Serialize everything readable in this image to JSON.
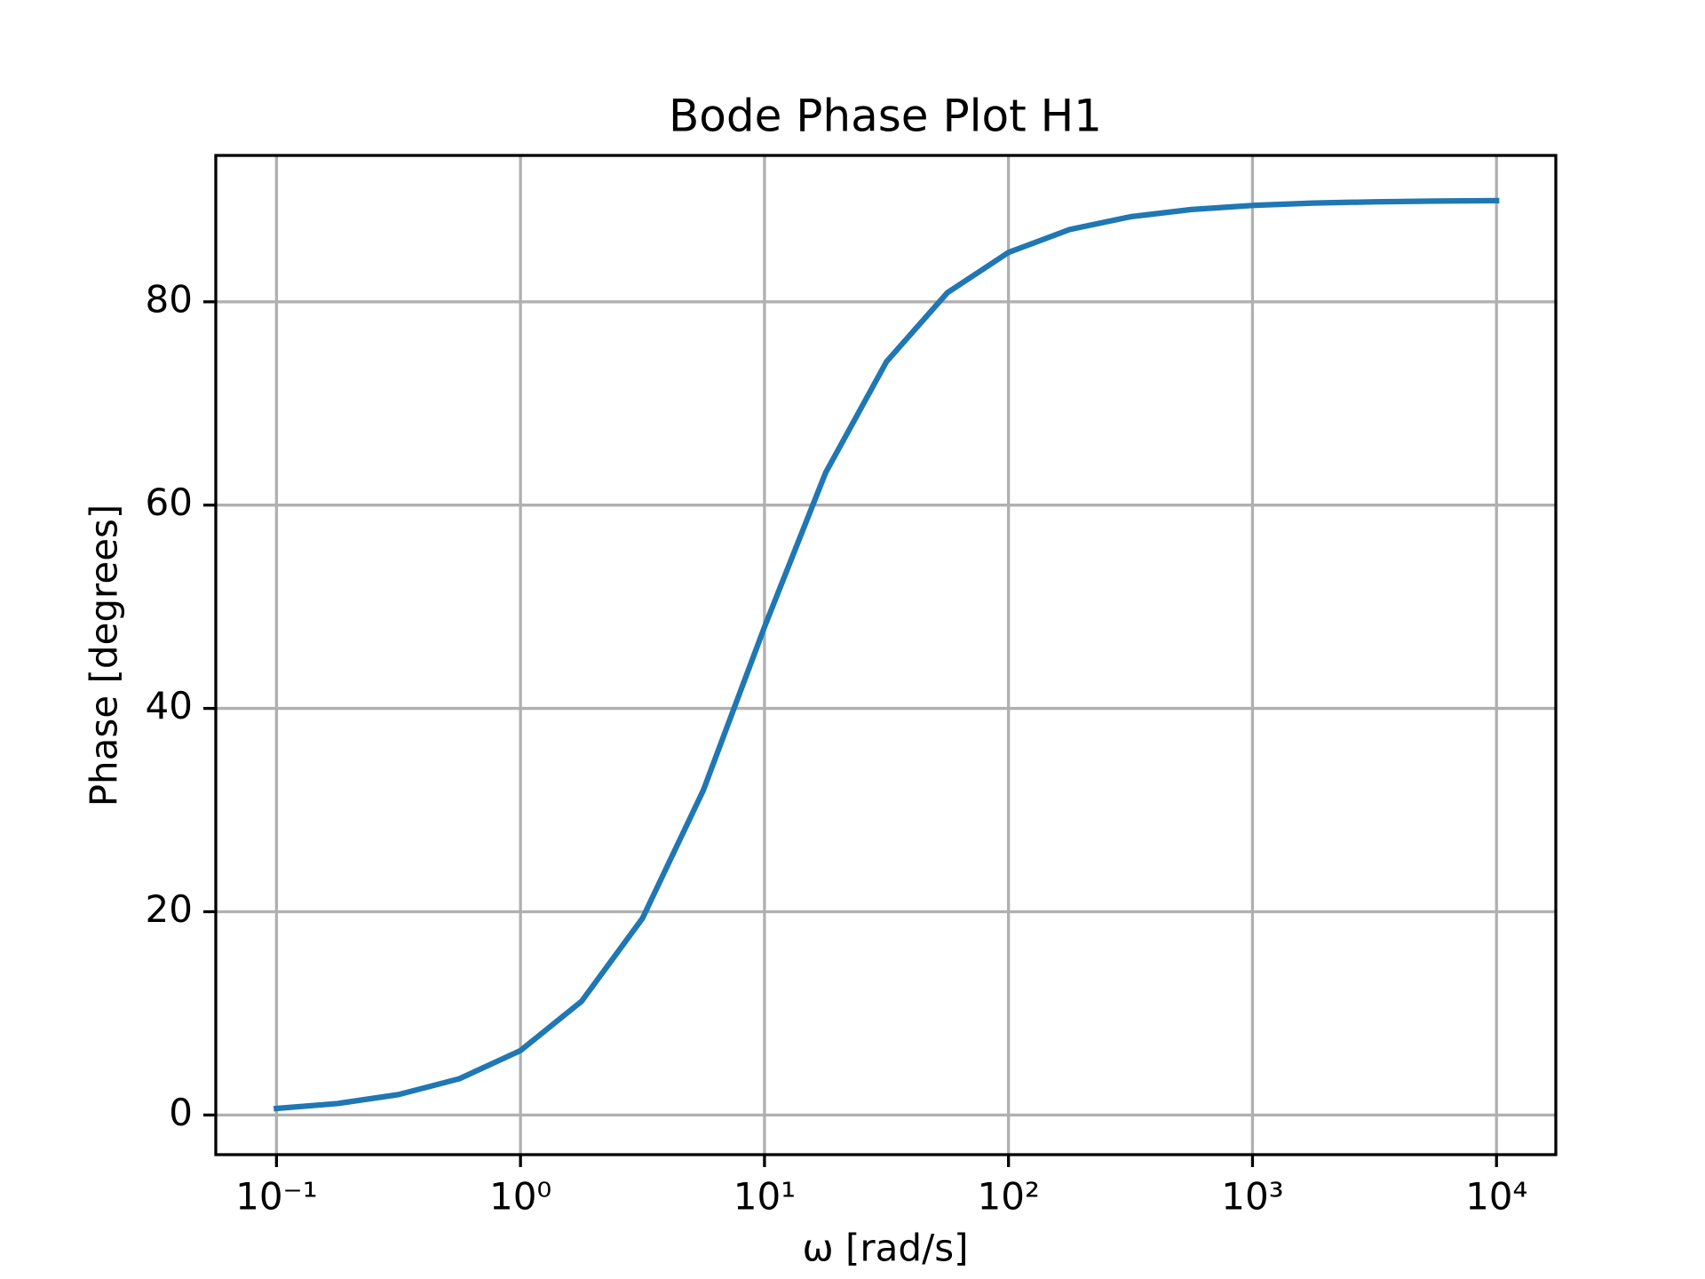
{
  "chart_data": {
    "type": "line",
    "title": "Bode Phase Plot H1",
    "x_label": "ω [rad/s]",
    "y_label": "Phase [degrees]",
    "x_scale": "log",
    "grid": true,
    "x": [
      0.1,
      0.178,
      0.316,
      0.562,
      1,
      1.78,
      3.16,
      5.62,
      10,
      17.8,
      31.6,
      56.2,
      100,
      178,
      316,
      562,
      1000,
      1780,
      3160,
      5620,
      10000
    ],
    "series": [
      {
        "name": "H1",
        "color": "#1f77b4",
        "values": [
          0.64,
          1.13,
          2.01,
          3.57,
          6.34,
          11.19,
          19.34,
          31.97,
          48.01,
          63.18,
          74.1,
          80.9,
          84.86,
          87.11,
          88.37,
          89.08,
          89.48,
          89.71,
          89.84,
          89.91,
          89.95
        ]
      }
    ],
    "xlim": [
      0.0564,
      17500
    ],
    "ylim": [
      -3.9,
      94.4
    ],
    "xticks": [
      {
        "value": 0.1,
        "label": "10⁻¹"
      },
      {
        "value": 1,
        "label": "10⁰"
      },
      {
        "value": 10,
        "label": "10¹"
      },
      {
        "value": 100,
        "label": "10²"
      },
      {
        "value": 1000,
        "label": "10³"
      },
      {
        "value": 10000,
        "label": "10⁴"
      }
    ],
    "yticks": [
      0,
      20,
      40,
      60,
      80
    ]
  }
}
